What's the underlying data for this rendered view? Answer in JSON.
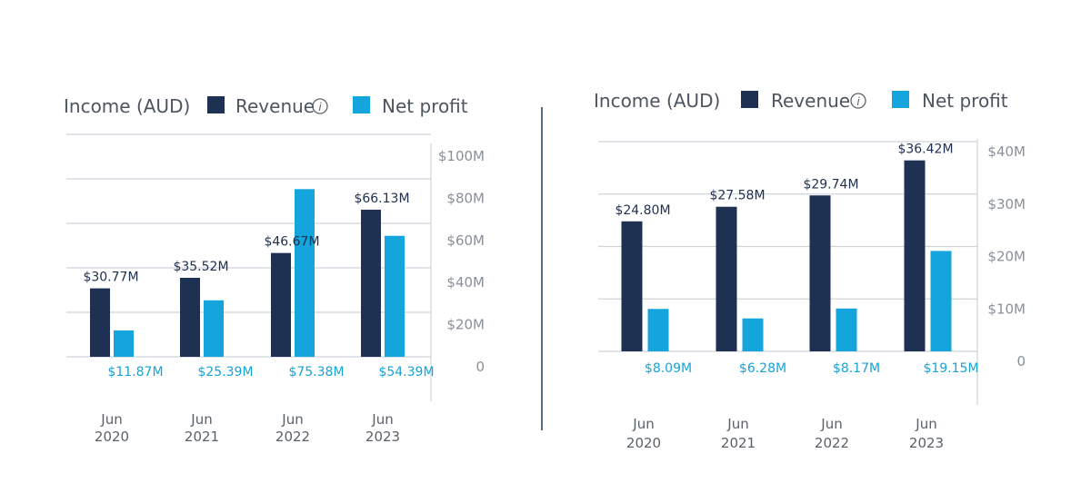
{
  "colors": {
    "revenue": "#1f3153",
    "net_profit": "#14a5dc",
    "grid": "#cfd4d9",
    "divider": "#1e3a5f",
    "revenue_label": "#1f2f4e",
    "net_profit_label": "#17a3d6"
  },
  "chart_data": [
    {
      "type": "bar",
      "title": "Income (AUD)",
      "legend": [
        {
          "name": "Revenue",
          "info_icon": "info-circle-icon"
        },
        {
          "name": "Net profit"
        }
      ],
      "categories": [
        [
          "Jun",
          "2020"
        ],
        [
          "Jun",
          "2021"
        ],
        [
          "Jun",
          "2022"
        ],
        [
          "Jun",
          "2023"
        ]
      ],
      "series": [
        {
          "name": "Revenue",
          "values": [
            30.77,
            35.52,
            46.67,
            66.13
          ],
          "labels": [
            "$30.77M",
            "$35.52M",
            "$46.67M",
            "$66.13M"
          ]
        },
        {
          "name": "Net profit",
          "values": [
            11.87,
            25.39,
            75.38,
            54.39
          ],
          "labels": [
            "$11.87M",
            "$25.39M",
            "$75.38M",
            "$54.39M"
          ]
        }
      ],
      "y_ticks": [
        {
          "value": 100,
          "label": "$100M"
        },
        {
          "value": 80,
          "label": "$80M"
        },
        {
          "value": 60,
          "label": "$60M"
        },
        {
          "value": 40,
          "label": "$40M"
        },
        {
          "value": 20,
          "label": "$20M"
        },
        {
          "value": 0,
          "label": "0"
        }
      ],
      "ylim": [
        0,
        100
      ],
      "y_axis_side": "right",
      "grid": true
    },
    {
      "type": "bar",
      "title": "Income (AUD)",
      "legend": [
        {
          "name": "Revenue",
          "info_icon": "info-circle-icon"
        },
        {
          "name": "Net profit"
        }
      ],
      "categories": [
        [
          "Jun",
          "2020"
        ],
        [
          "Jun",
          "2021"
        ],
        [
          "Jun",
          "2022"
        ],
        [
          "Jun",
          "2023"
        ]
      ],
      "series": [
        {
          "name": "Revenue",
          "values": [
            24.8,
            27.58,
            29.74,
            36.42
          ],
          "labels": [
            "$24.80M",
            "$27.58M",
            "$29.74M",
            "$36.42M"
          ]
        },
        {
          "name": "Net profit",
          "values": [
            8.09,
            6.28,
            8.17,
            19.15
          ],
          "labels": [
            "$8.09M",
            "$6.28M",
            "$8.17M",
            "$19.15M"
          ]
        }
      ],
      "y_ticks": [
        {
          "value": 40,
          "label": "$40M"
        },
        {
          "value": 30,
          "label": "$30M"
        },
        {
          "value": 20,
          "label": "$20M"
        },
        {
          "value": 10,
          "label": "$10M"
        },
        {
          "value": 0,
          "label": "0"
        }
      ],
      "ylim": [
        0,
        40
      ],
      "y_axis_side": "right",
      "grid": true
    }
  ]
}
